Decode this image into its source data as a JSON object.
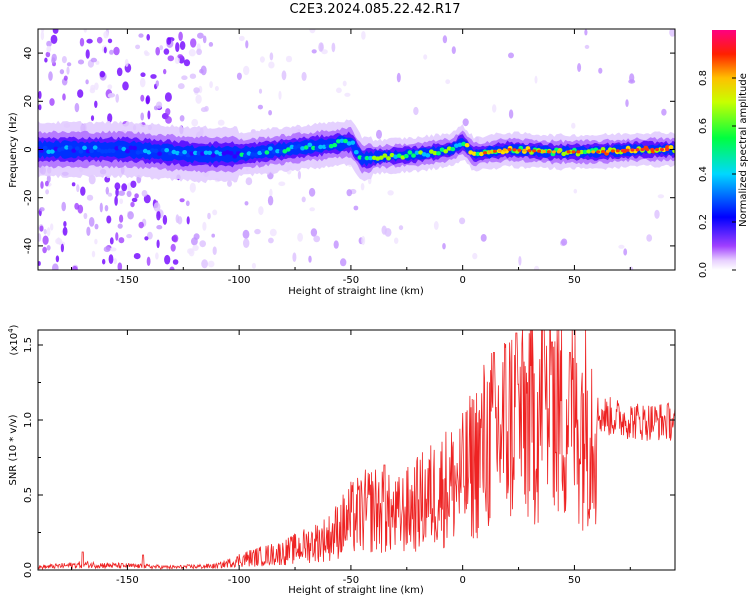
{
  "title": "C2E3.2024.085.22.42.R17",
  "colors": {
    "snr_line": "#ee2222",
    "axis": "#000000",
    "colormap": [
      "#ffffff",
      "#e0c8ff",
      "#a040ff",
      "#5a00ff",
      "#0020ff",
      "#00c8ff",
      "#00ff60",
      "#b0ff00",
      "#ffd000",
      "#ff3000",
      "#ff0080"
    ]
  },
  "chart_data": [
    {
      "type": "heatmap",
      "name": "spectrogram",
      "xlabel": "Height of straight line (km)",
      "ylabel": "Frequency (Hz)",
      "xlim": [
        -190,
        95
      ],
      "ylim": [
        -50,
        50
      ],
      "xticks": [
        -150,
        -100,
        -50,
        0,
        50
      ],
      "yticks": [
        -40,
        -20,
        0,
        20,
        40
      ],
      "ridge_center_hz": [
        {
          "x": -190,
          "y": 0
        },
        {
          "x": -150,
          "y": 0
        },
        {
          "x": -120,
          "y": -2
        },
        {
          "x": -100,
          "y": -2
        },
        {
          "x": -80,
          "y": 0
        },
        {
          "x": -60,
          "y": 2
        },
        {
          "x": -50,
          "y": 3
        },
        {
          "x": -45,
          "y": -4
        },
        {
          "x": -38,
          "y": -3
        },
        {
          "x": -20,
          "y": -2
        },
        {
          "x": -5,
          "y": 0
        },
        {
          "x": 0,
          "y": 3
        },
        {
          "x": 5,
          "y": -2
        },
        {
          "x": 20,
          "y": 0
        },
        {
          "x": 40,
          "y": -1
        },
        {
          "x": 60,
          "y": -1
        },
        {
          "x": 80,
          "y": 0
        },
        {
          "x": 95,
          "y": 0
        }
      ],
      "colorbar": {
        "label": "Normalized spectral amplitude",
        "range": [
          0,
          1
        ],
        "ticks": [
          "0.0",
          "0.2",
          "0.4",
          "0.6",
          "0.8"
        ]
      }
    },
    {
      "type": "line",
      "name": "snr",
      "xlabel": "Height of straight line (km)",
      "ylabel": "SNR (10 * v/v)",
      "multiplier_label": "(x10",
      "multiplier_exp": "4",
      "xlim": [
        -190,
        95
      ],
      "ylim": [
        0,
        1.6
      ],
      "xticks": [
        -150,
        -100,
        -50,
        0,
        50
      ],
      "yticks": [
        "0.0",
        "0.5",
        "1.0",
        "1.5"
      ],
      "envelope": [
        {
          "x": -190,
          "y": 0.02
        },
        {
          "x": -170,
          "y": 0.04
        },
        {
          "x": -150,
          "y": 0.03
        },
        {
          "x": -130,
          "y": 0.02
        },
        {
          "x": -110,
          "y": 0.03
        },
        {
          "x": -100,
          "y": 0.07
        },
        {
          "x": -80,
          "y": 0.12
        },
        {
          "x": -60,
          "y": 0.22
        },
        {
          "x": -50,
          "y": 0.35
        },
        {
          "x": -40,
          "y": 0.42
        },
        {
          "x": -30,
          "y": 0.36
        },
        {
          "x": -20,
          "y": 0.45
        },
        {
          "x": -10,
          "y": 0.55
        },
        {
          "x": 0,
          "y": 0.62
        },
        {
          "x": 10,
          "y": 0.85
        },
        {
          "x": 20,
          "y": 1.0
        },
        {
          "x": 30,
          "y": 1.05
        },
        {
          "x": 40,
          "y": 1.12
        },
        {
          "x": 50,
          "y": 1.05
        },
        {
          "x": 60,
          "y": 1.05
        },
        {
          "x": 70,
          "y": 1.02
        },
        {
          "x": 80,
          "y": 1.0
        },
        {
          "x": 95,
          "y": 1.0
        }
      ],
      "peaks": [
        {
          "x": -143,
          "y": 0.1
        },
        {
          "x": -170,
          "y": 0.12
        },
        {
          "x": -35,
          "y": 0.7
        },
        {
          "x": 14,
          "y": 1.45
        },
        {
          "x": 24,
          "y": 1.58
        },
        {
          "x": 36,
          "y": 1.6
        },
        {
          "x": 40,
          "y": 1.52
        },
        {
          "x": 48,
          "y": 1.45
        }
      ]
    }
  ]
}
